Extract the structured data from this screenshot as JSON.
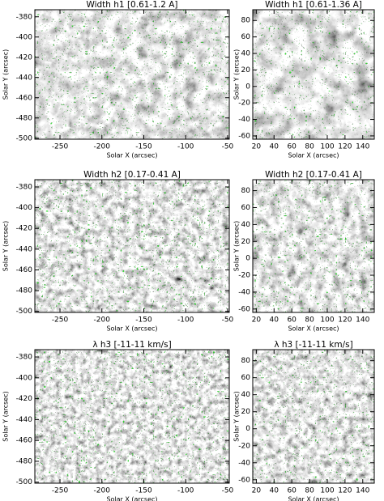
{
  "chart_data": [
    {
      "type": "image",
      "title": "Width h1 [0.61-1.2 A]",
      "xlabel": "Solar X (arcsec)",
      "ylabel": "Solar Y (arcsec)",
      "xlim": [
        -280,
        -48
      ],
      "ylim": [
        -501,
        -373
      ],
      "xticks": [
        -250,
        -200,
        -150,
        -100,
        -50
      ],
      "yticks": [
        -380,
        -400,
        -420,
        -440,
        -460,
        -480,
        -500
      ]
    },
    {
      "type": "image",
      "title": "Width h1 [0.61-1.36 A]",
      "xlabel": "Solar X (arcsec)",
      "ylabel": "Solar Y (arcsec)",
      "xlim": [
        16,
        153
      ],
      "ylim": [
        -64,
        93
      ],
      "xticks": [
        20,
        40,
        60,
        80,
        100,
        120,
        140
      ],
      "yticks": [
        80,
        60,
        40,
        20,
        0,
        -20,
        -40,
        -60
      ]
    },
    {
      "type": "image",
      "title": "Width h2 [0.17-0.41 A]",
      "xlabel": "Solar X (arcsec)",
      "ylabel": "Solar Y (arcsec)",
      "xlim": [
        -280,
        -48
      ],
      "ylim": [
        -501,
        -373
      ],
      "xticks": [
        -250,
        -200,
        -150,
        -100,
        -50
      ],
      "yticks": [
        -380,
        -400,
        -420,
        -440,
        -460,
        -480,
        -500
      ]
    },
    {
      "type": "image",
      "title": "Width h2 [0.17-0.41 A]",
      "xlabel": "Solar X (arcsec)",
      "ylabel": "Solar Y (arcsec)",
      "xlim": [
        16,
        153
      ],
      "ylim": [
        -64,
        93
      ],
      "xticks": [
        20,
        40,
        60,
        80,
        100,
        120,
        140
      ],
      "yticks": [
        80,
        60,
        40,
        20,
        0,
        -20,
        -40,
        -60
      ]
    },
    {
      "type": "image",
      "title": "λ h3 [-11-11 km/s]",
      "xlabel": "Solar X (arcsec)",
      "ylabel": "Solar Y (arcsec)",
      "xlim": [
        -280,
        -48
      ],
      "ylim": [
        -501,
        -373
      ],
      "xticks": [
        -250,
        -200,
        -150,
        -100,
        -50
      ],
      "yticks": [
        -380,
        -400,
        -420,
        -440,
        -460,
        -480,
        -500
      ]
    },
    {
      "type": "image",
      "title": "λ h3 [-11-11 km/s]",
      "xlabel": "Solar X (arcsec)",
      "ylabel": "Solar Y (arcsec)",
      "xlim": [
        16,
        153
      ],
      "ylim": [
        -64,
        93
      ],
      "xticks": [
        20,
        40,
        60,
        80,
        100,
        120,
        140
      ],
      "yticks": [
        80,
        60,
        40,
        20,
        0,
        -20,
        -40,
        -60
      ]
    }
  ]
}
